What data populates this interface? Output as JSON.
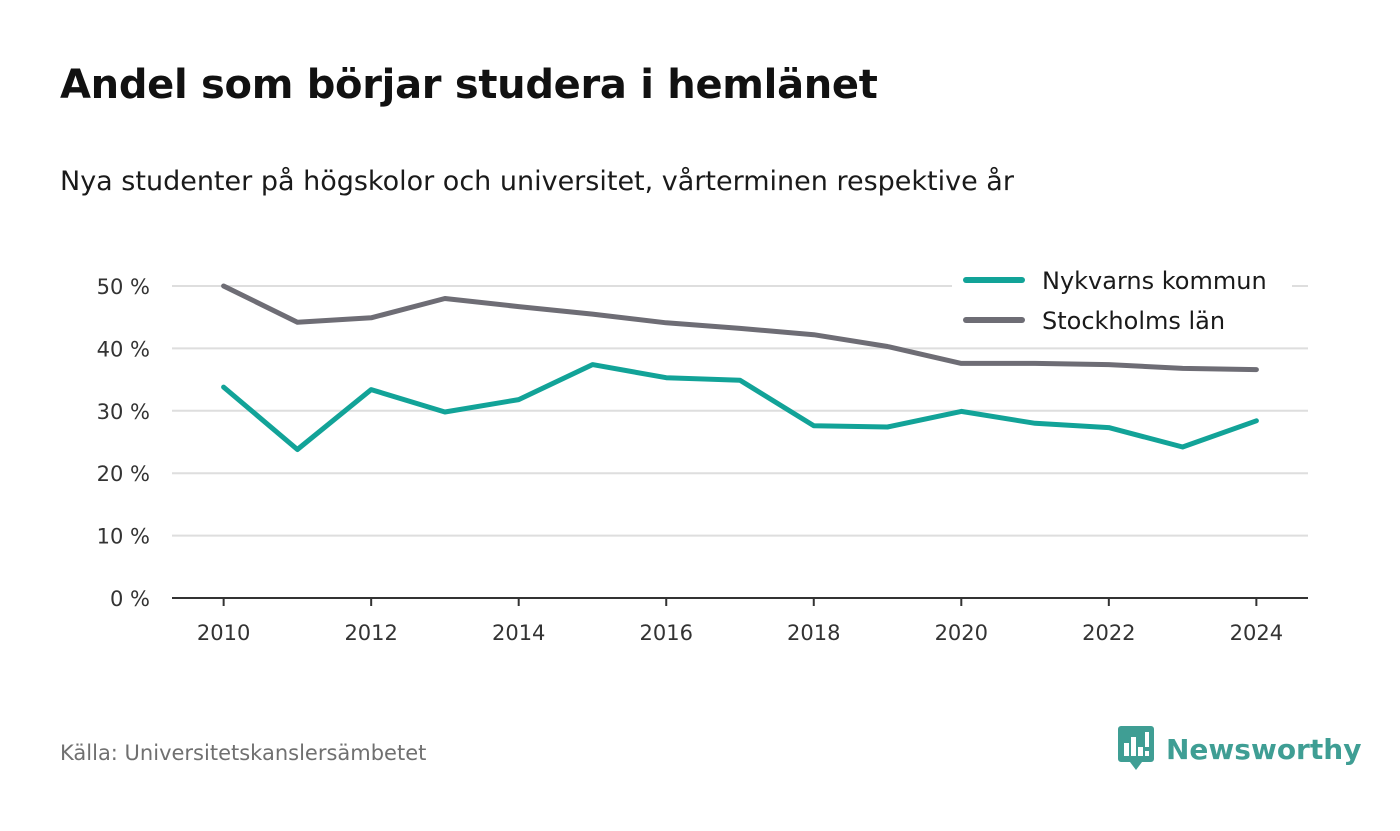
{
  "header": {
    "title": "Andel som börjar studera i hemlänet",
    "subtitle": "Nya studenter på högskolor och universitet, vårterminen respektive år"
  },
  "footer": {
    "source": "Källa: Universitetskanslersämbetet",
    "brand": "Newsworthy",
    "brand_icon": "newsworthy-logo-icon"
  },
  "colors": {
    "series_1": "#12a398",
    "series_2": "#6e6d75",
    "grid": "#dedede",
    "axis": "#333333",
    "brand": "#3f9e94"
  },
  "chart_data": {
    "type": "line",
    "title": "Andel som börjar studera i hemlänet",
    "subtitle": "Nya studenter på högskolor och universitet, vårterminen respektive år",
    "xlabel": "",
    "ylabel": "",
    "x": [
      2010,
      2011,
      2012,
      2013,
      2014,
      2015,
      2016,
      2017,
      2018,
      2019,
      2020,
      2021,
      2022,
      2023,
      2024
    ],
    "x_ticks": [
      2010,
      2012,
      2014,
      2016,
      2018,
      2020,
      2022,
      2024
    ],
    "x_tick_labels": [
      "2010",
      "2012",
      "2014",
      "2016",
      "2018",
      "2020",
      "2022",
      "2024"
    ],
    "y_ticks": [
      0,
      10,
      20,
      30,
      40,
      50
    ],
    "y_tick_labels": [
      "0 %",
      "10 %",
      "20 %",
      "30 %",
      "40 %",
      "50 %"
    ],
    "xlim": [
      2009.3,
      2024.7
    ],
    "ylim": [
      0,
      50
    ],
    "grid": true,
    "legend_position": "top-right",
    "series": [
      {
        "name": "Nykvarns kommun",
        "color": "#12a398",
        "values": [
          33.8,
          23.8,
          33.4,
          29.8,
          31.8,
          37.4,
          35.3,
          34.9,
          27.6,
          27.4,
          29.9,
          28.0,
          27.3,
          24.2,
          28.4
        ]
      },
      {
        "name": "Stockholms län",
        "color": "#6e6d75",
        "values": [
          50.0,
          44.2,
          44.9,
          48.0,
          46.7,
          45.5,
          44.1,
          43.2,
          42.2,
          40.3,
          37.6,
          37.6,
          37.4,
          36.8,
          36.6
        ]
      }
    ]
  }
}
